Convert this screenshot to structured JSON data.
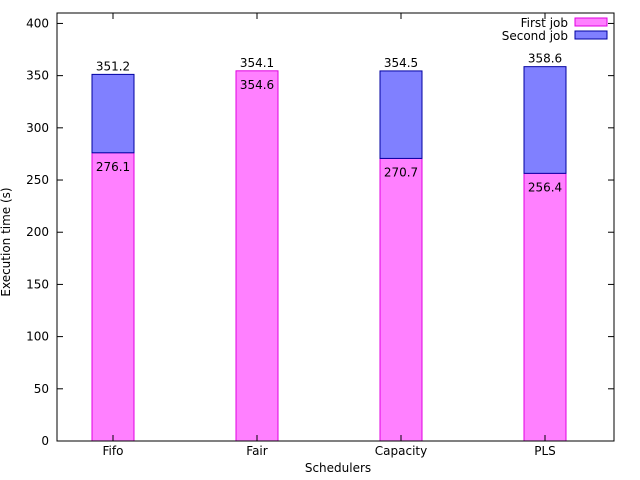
{
  "chart_data": {
    "type": "bar",
    "subtype": "stacked",
    "title": "",
    "xlabel": "Schedulers",
    "ylabel": "Execution time (s)",
    "categories": [
      "Fifo",
      "Fair",
      "Capacity",
      "PLS"
    ],
    "ylim": [
      0,
      410
    ],
    "yticks": [
      0,
      50,
      100,
      150,
      200,
      250,
      300,
      350,
      400
    ],
    "grid": false,
    "legend_position": "top-right",
    "series": [
      {
        "name": "First job",
        "values": [
          276.1,
          354.6,
          270.7,
          256.4
        ],
        "labels": [
          "276.1",
          "354.6",
          "270.7",
          "256.4"
        ],
        "color": "#ff80ff",
        "stroke": "#e000e0"
      },
      {
        "name": "Second job",
        "values": [
          351.2,
          354.1,
          354.5,
          358.6
        ],
        "labels": [
          "351.2",
          "354.1",
          "354.5",
          "358.6"
        ],
        "color": "#8080ff",
        "stroke": "#0000a0"
      }
    ]
  }
}
